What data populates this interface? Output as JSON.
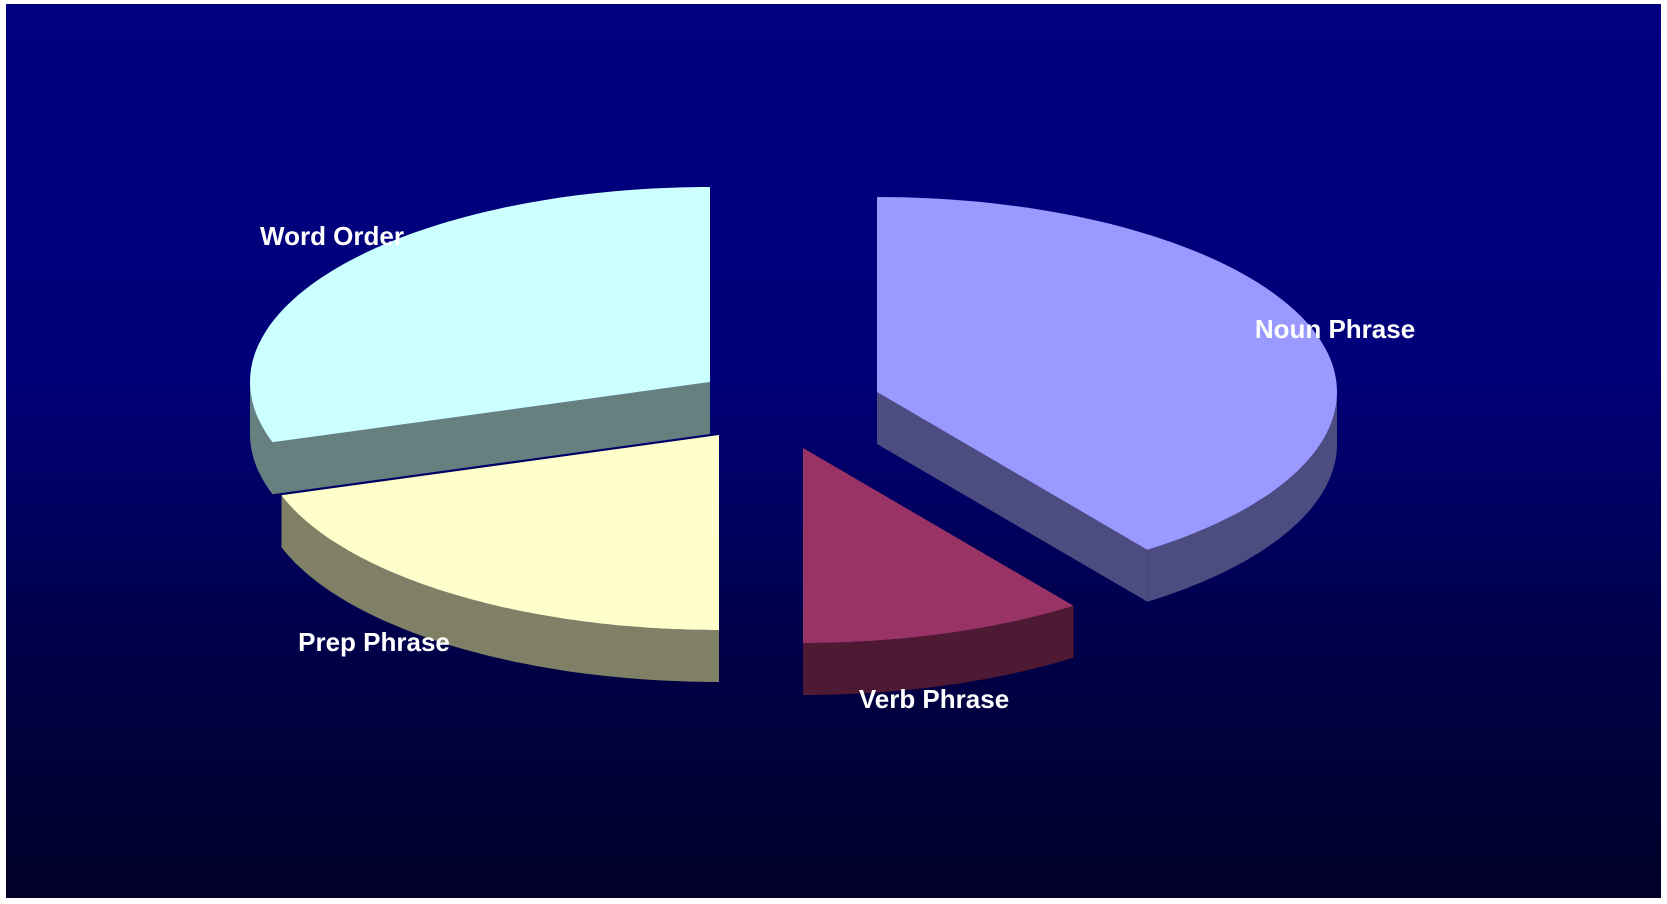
{
  "chart_data": {
    "type": "pie",
    "style": "3d-exploded",
    "title": "",
    "background": "#000080",
    "legend": "none",
    "slices": [
      {
        "label": "Noun Phrase",
        "value": 40,
        "top_color": "#9999FF",
        "side_color": "#4C4C80"
      },
      {
        "label": "Verb Phrase",
        "value": 10,
        "top_color": "#993366",
        "side_color": "#4D1933"
      },
      {
        "label": "Prep Phrase",
        "value": 20,
        "top_color": "#FFFFCC",
        "side_color": "#808066"
      },
      {
        "label": "Word Order",
        "value": 30,
        "top_color": "#CCFFFF",
        "side_color": "#668080"
      }
    ]
  }
}
